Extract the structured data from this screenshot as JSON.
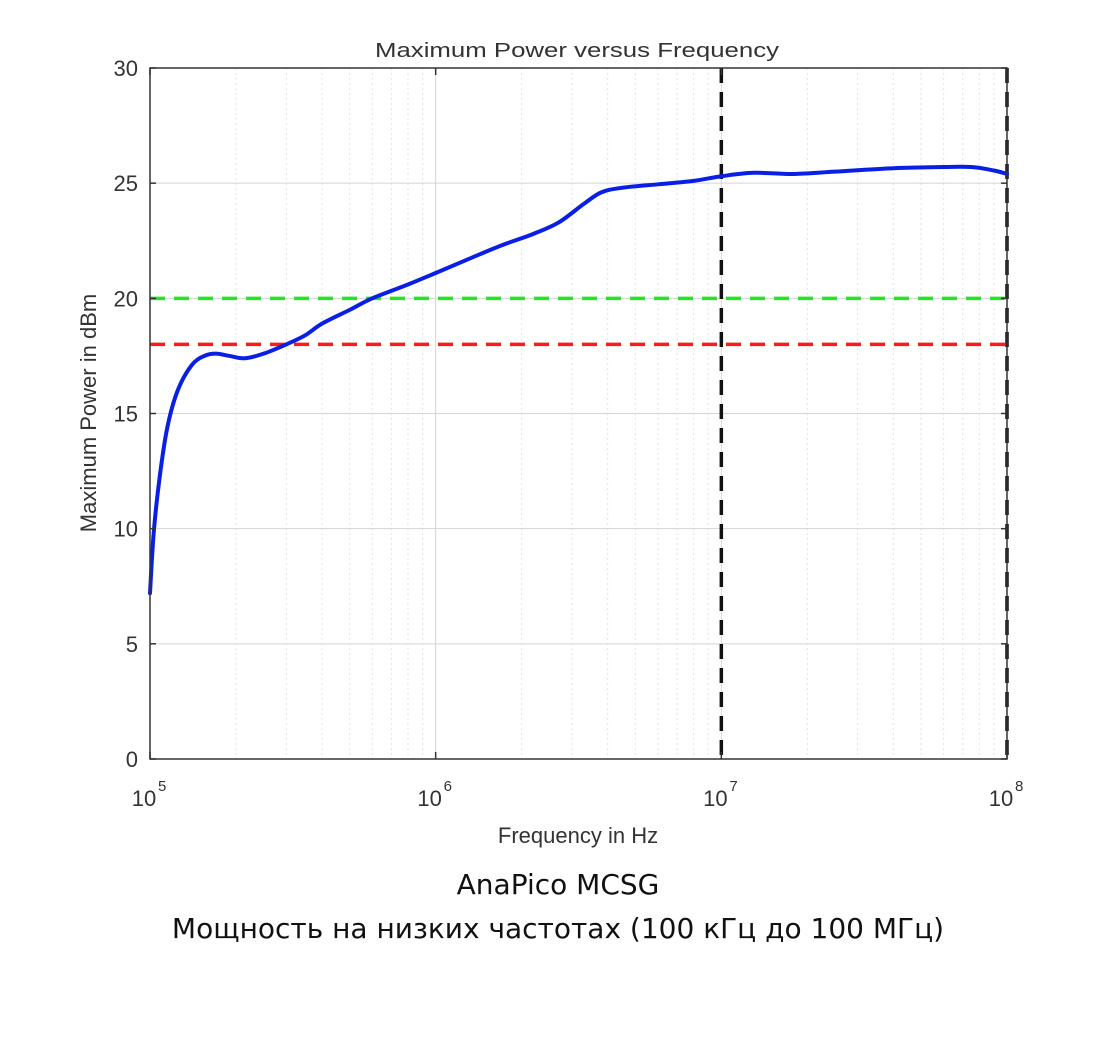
{
  "chart_data": {
    "type": "line",
    "title": "Maximum Power versus Frequency",
    "xlabel": "Frequency in Hz",
    "ylabel": "Maximum Power in dBm",
    "xscale": "log",
    "xlim": [
      100000,
      100000000
    ],
    "ylim": [
      0,
      30
    ],
    "yticks": [
      0,
      5,
      10,
      15,
      20,
      25,
      30
    ],
    "xticks": [
      {
        "value": 100000,
        "base": "10",
        "exp": "5"
      },
      {
        "value": 1000000,
        "base": "10",
        "exp": "6"
      },
      {
        "value": 10000000,
        "base": "10",
        "exp": "7"
      },
      {
        "value": 100000000,
        "base": "10",
        "exp": "8"
      }
    ],
    "grid": true,
    "series": [
      {
        "name": "Maximum Power",
        "color": "#0a1fe6",
        "x": [
          100000,
          103000,
          108000,
          115000,
          125000,
          140000,
          155000,
          170000,
          190000,
          215000,
          250000,
          300000,
          350000,
          400000,
          500000,
          600000,
          800000,
          1000000,
          1300000,
          1700000,
          2200000,
          2700000,
          3300000,
          3800000,
          4500000,
          6000000,
          8000000,
          10000000,
          13000000,
          18000000,
          25000000,
          40000000,
          60000000,
          75000000,
          90000000,
          100000000
        ],
        "y": [
          7.2,
          9.8,
          12.2,
          14.4,
          16.0,
          17.1,
          17.5,
          17.6,
          17.5,
          17.4,
          17.6,
          18.0,
          18.4,
          18.9,
          19.5,
          20.0,
          20.6,
          21.1,
          21.7,
          22.3,
          22.8,
          23.3,
          24.1,
          24.6,
          24.8,
          24.95,
          25.1,
          25.3,
          25.45,
          25.4,
          25.5,
          25.65,
          25.7,
          25.7,
          25.55,
          25.4
        ]
      }
    ],
    "reference_lines": [
      {
        "name": "20 dBm reference",
        "orientation": "horizontal",
        "value": 20,
        "color": "#22e622",
        "style": "dashed"
      },
      {
        "name": "18 dBm reference",
        "orientation": "horizontal",
        "value": 18,
        "color": "#ff1a1a",
        "style": "dashed"
      },
      {
        "name": "10 MHz marker",
        "orientation": "vertical",
        "value": 10000000,
        "color": "#111111",
        "style": "dashed"
      },
      {
        "name": "100 MHz marker",
        "orientation": "vertical",
        "value": 100000000,
        "color": "#111111",
        "style": "dashed"
      }
    ]
  },
  "caption": {
    "line1": "AnaPico MCSG",
    "line2": "Мощность на низких частотах (100 кГц до 100 МГц)"
  }
}
